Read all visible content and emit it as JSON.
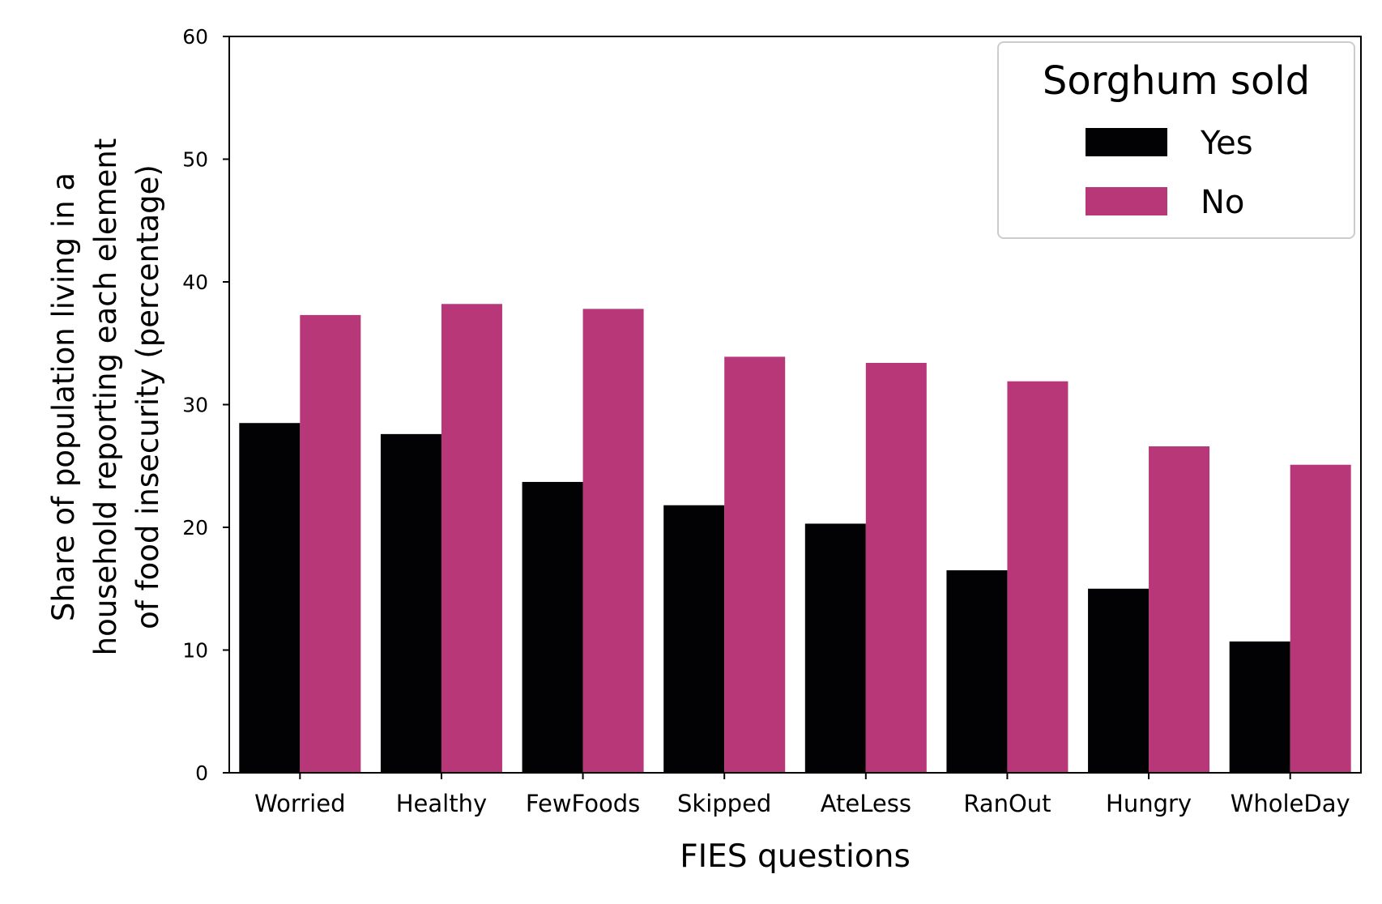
{
  "chart_data": {
    "type": "bar",
    "title": "",
    "xlabel": "FIES questions",
    "ylabel_lines": [
      "Share of population living in a",
      "household reporting each element",
      "of food insecurity (percentage)"
    ],
    "ylim": [
      0,
      60
    ],
    "yticks": [
      0,
      10,
      20,
      30,
      40,
      50,
      60
    ],
    "categories": [
      "Worried",
      "Healthy",
      "FewFoods",
      "Skipped",
      "AteLess",
      "RanOut",
      "Hungry",
      "WholeDay"
    ],
    "series": [
      {
        "name": "Yes",
        "color": "#020204",
        "values": [
          28.5,
          27.6,
          23.7,
          21.8,
          20.3,
          16.5,
          15.0,
          10.7
        ]
      },
      {
        "name": "No",
        "color": "#b73779",
        "values": [
          37.3,
          38.2,
          37.8,
          33.9,
          33.4,
          31.9,
          26.6,
          25.1
        ]
      }
    ],
    "legend": {
      "title": "Sorghum sold",
      "position": "top-right"
    },
    "grid": false
  }
}
